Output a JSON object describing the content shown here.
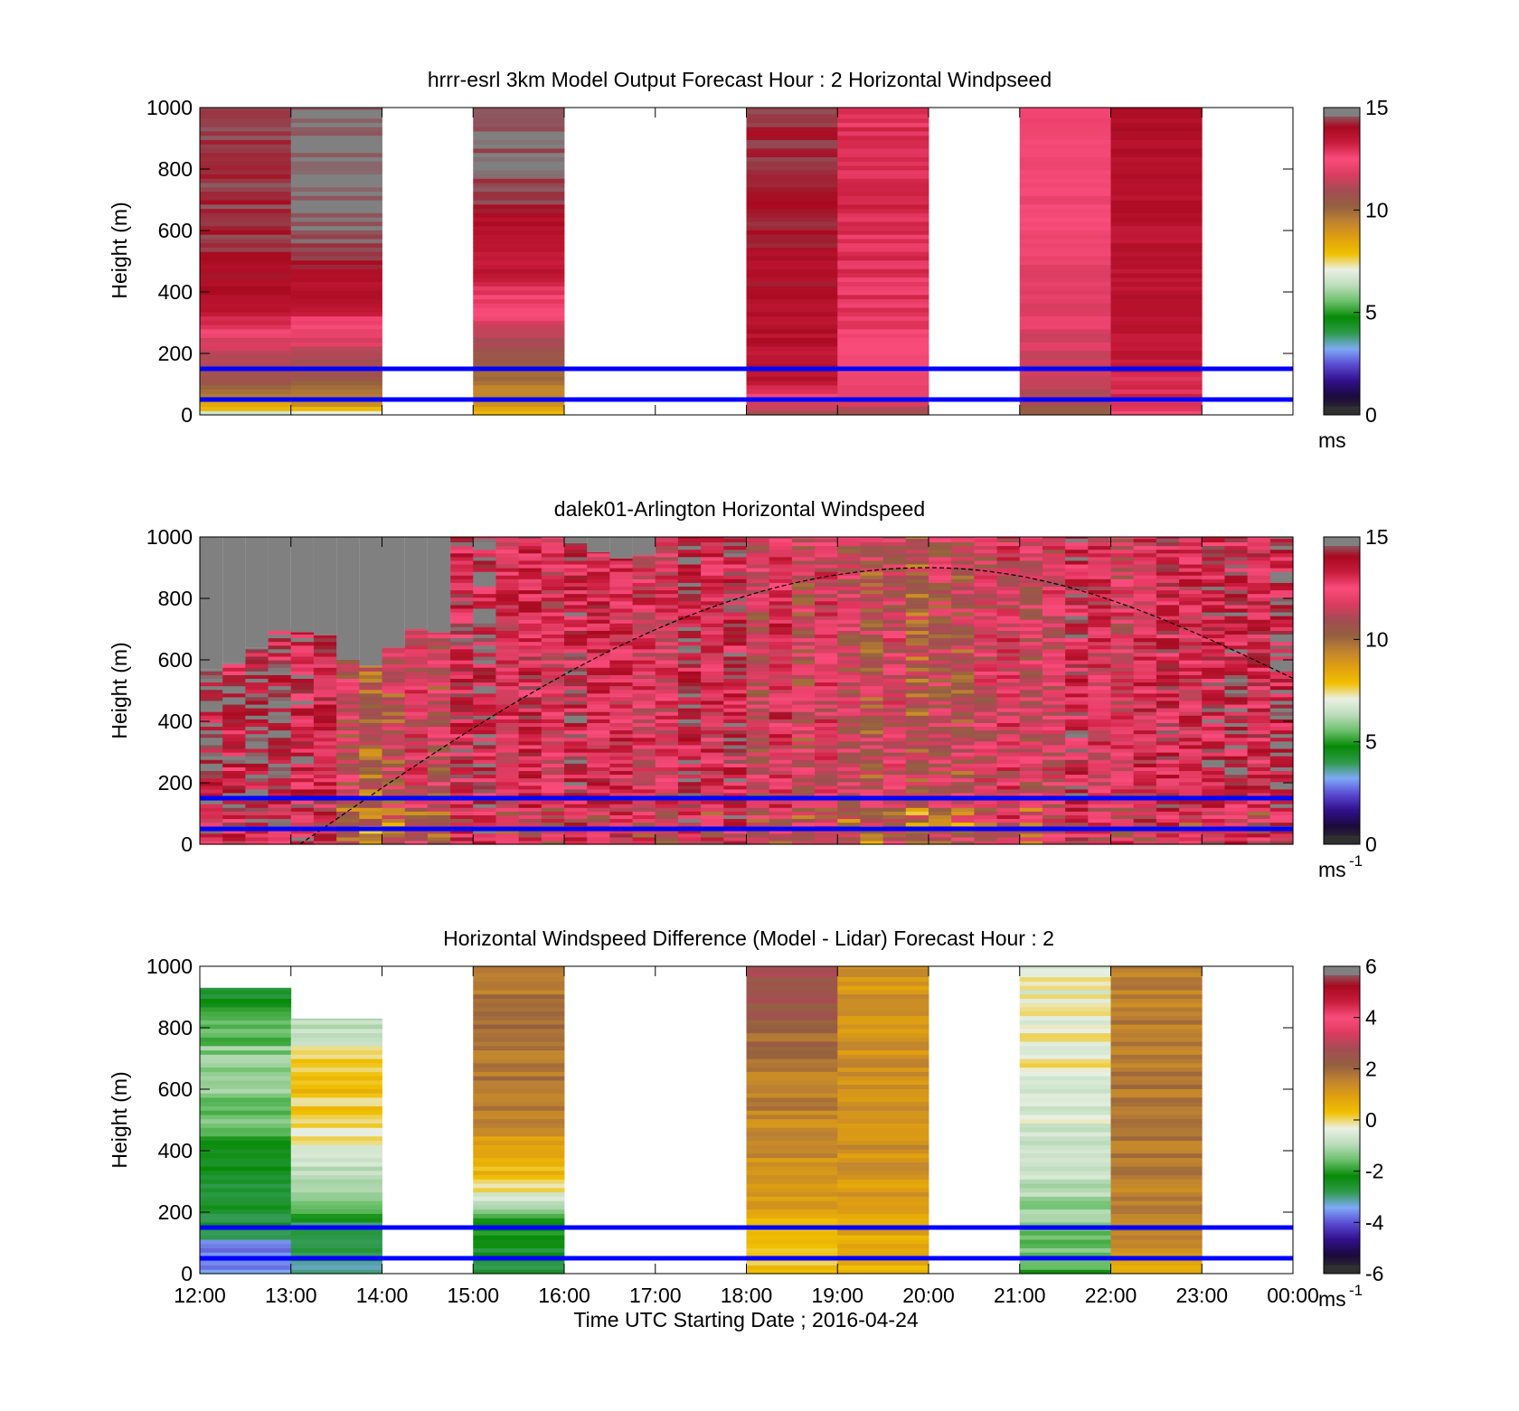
{
  "colors": {
    "speed_scale": [
      "#303030",
      "#1c0a3c",
      "#32108c",
      "#5a4ad2",
      "#7eaaf6",
      "#2e9a4a",
      "#068a06",
      "#6cc06c",
      "#bcdcbc",
      "#eaf0e4",
      "#f0c000",
      "#e0a010",
      "#c08430",
      "#946040",
      "#a44c54",
      "#dc3c60",
      "#fa4c7c",
      "#c81c3c",
      "#a80a20",
      "#808080"
    ],
    "diff_scale": [
      "#303030",
      "#1c0a3c",
      "#32108c",
      "#5a4ad2",
      "#7eaaf6",
      "#2e9a4a",
      "#068a06",
      "#6cc06c",
      "#bcdcbc",
      "#eaf0e4",
      "#f0c000",
      "#e0a010",
      "#c08430",
      "#946040",
      "#a44c54",
      "#dc3c60",
      "#fa4c7c",
      "#c81c3c",
      "#a80a20",
      "#808080"
    ],
    "reference_lines": "#0000ff",
    "curve": "#000000",
    "no_data_lidar": "#808080"
  },
  "x_axis": {
    "ticks": [
      "12:00",
      "13:00",
      "14:00",
      "15:00",
      "16:00",
      "17:00",
      "18:00",
      "19:00",
      "20:00",
      "21:00",
      "22:00",
      "23:00",
      "00:00"
    ],
    "label": "Time UTC  Starting Date ; 2016-04-24"
  },
  "chart_data": [
    {
      "type": "heatmap",
      "title": "hrrr-esrl 3km Model Output   Forecast Hour : 2 Horizontal Windpseed",
      "ylabel": "Height (m)",
      "ylim": [
        0,
        1000
      ],
      "yticks": [
        "0",
        "200",
        "400",
        "600",
        "800",
        "1000"
      ],
      "xlim_hours": [
        12,
        24
      ],
      "colorbar": {
        "min": 0,
        "max": 15,
        "ticks": [
          "0",
          "5",
          "10",
          "15"
        ],
        "unit_base": "ms",
        "unit_sup": ""
      },
      "reference_lines_m": [
        50,
        150
      ],
      "columns": [
        {
          "t0": 12,
          "profile": [
            [
              0,
              6.5
            ],
            [
              30,
              8.5
            ],
            [
              60,
              9.5
            ],
            [
              100,
              10.5
            ],
            [
              160,
              11
            ],
            [
              250,
              12.0
            ],
            [
              320,
              13.5
            ],
            [
              420,
              14.0
            ],
            [
              600,
              14.5
            ],
            [
              1000,
              14.5
            ]
          ]
        },
        {
          "t0": 13,
          "profile": [
            [
              0,
              6.0
            ],
            [
              30,
              9
            ],
            [
              70,
              9.8
            ],
            [
              120,
              10.5
            ],
            [
              250,
              12.0
            ],
            [
              350,
              13.5
            ],
            [
              450,
              14.2
            ],
            [
              650,
              15.0
            ],
            [
              1000,
              15.0
            ]
          ]
        },
        {
          "t0": 15,
          "profile": [
            [
              0,
              7.6
            ],
            [
              40,
              9.0
            ],
            [
              130,
              10.0
            ],
            [
              250,
              11.2
            ],
            [
              330,
              12.3
            ],
            [
              450,
              13.5
            ],
            [
              600,
              13.8
            ],
            [
              700,
              14.6
            ],
            [
              1000,
              15.0
            ]
          ]
        },
        {
          "t0": 18,
          "profile": [
            [
              0,
              10.5
            ],
            [
              40,
              12.0
            ],
            [
              100,
              13.6
            ],
            [
              350,
              14.0
            ],
            [
              600,
              14.2
            ],
            [
              1000,
              14.4
            ]
          ]
        },
        {
          "t0": 19,
          "profile": [
            [
              0,
              10.8
            ],
            [
              40,
              11.8
            ],
            [
              150,
              12.4
            ],
            [
              350,
              13.0
            ],
            [
              800,
              13.2
            ],
            [
              1000,
              13.0
            ]
          ]
        },
        {
          "t0": 21,
          "profile": [
            [
              0,
              10.0
            ],
            [
              40,
              11.0
            ],
            [
              160,
              11.6
            ],
            [
              300,
              12.0
            ],
            [
              500,
              12.2
            ],
            [
              700,
              12.4
            ],
            [
              900,
              12.6
            ],
            [
              1000,
              12.6
            ]
          ]
        },
        {
          "t0": 22,
          "profile": [
            [
              0,
              12.5
            ],
            [
              40,
              13.0
            ],
            [
              200,
              13.6
            ],
            [
              1000,
              14.0
            ]
          ]
        }
      ]
    },
    {
      "type": "heatmap",
      "title": "dalek01-Arlington  Horizontal Windspeed",
      "ylabel": "Height (m)",
      "ylim": [
        0,
        1000
      ],
      "yticks": [
        "0",
        "200",
        "400",
        "600",
        "800",
        "1000"
      ],
      "xlim_hours": [
        12,
        24
      ],
      "colorbar": {
        "min": 0,
        "max": 15,
        "ticks": [
          "0",
          "5",
          "10",
          "15"
        ],
        "unit_base": "ms",
        "unit_sup": "-1"
      },
      "reference_lines_m": [
        50,
        150
      ],
      "curve": {
        "start_hour": 13.1,
        "peak_hour": 20.0,
        "peak_height_m": 900,
        "end_hour": 24,
        "end_height_m": 540
      },
      "columns": [
        {
          "t0": 12.0,
          "top_m": 570,
          "mean": 14.3
        },
        {
          "t0": 12.25,
          "top_m": 590,
          "mean": 14.0
        },
        {
          "t0": 12.5,
          "top_m": 640,
          "mean": 14.4
        },
        {
          "t0": 12.75,
          "top_m": 700,
          "mean": 14.2
        },
        {
          "t0": 13.0,
          "top_m": 690,
          "mean": 13.8
        },
        {
          "t0": 13.25,
          "top_m": 680,
          "mean": 13.2
        },
        {
          "t0": 13.5,
          "top_m": 600,
          "mean": 11.5
        },
        {
          "t0": 13.75,
          "top_m": 580,
          "mean": 10.2
        },
        {
          "t0": 14.0,
          "top_m": 640,
          "mean": 11.0
        },
        {
          "t0": 14.25,
          "top_m": 700,
          "mean": 12.0
        },
        {
          "t0": 14.5,
          "top_m": 690,
          "mean": 11.2
        },
        {
          "t0": 14.75,
          "top_m": 1000,
          "mean": 13.5
        },
        {
          "t0": 15.0,
          "top_m": 1000,
          "mean": 14.0
        },
        {
          "t0": 15.25,
          "top_m": 1000,
          "mean": 12.6
        },
        {
          "t0": 15.5,
          "top_m": 1000,
          "mean": 13.2
        },
        {
          "t0": 15.75,
          "top_m": 1000,
          "mean": 12.2
        },
        {
          "t0": 16.0,
          "top_m": 980,
          "mean": 13.6
        },
        {
          "t0": 16.25,
          "top_m": 950,
          "mean": 13.0
        },
        {
          "t0": 16.5,
          "top_m": 930,
          "mean": 12.8
        },
        {
          "t0": 16.75,
          "top_m": 940,
          "mean": 12.4
        },
        {
          "t0": 17.0,
          "top_m": 1000,
          "mean": 12.2
        },
        {
          "t0": 17.25,
          "top_m": 1000,
          "mean": 14.2
        },
        {
          "t0": 17.5,
          "top_m": 1000,
          "mean": 12.6
        },
        {
          "t0": 17.75,
          "top_m": 1000,
          "mean": 13.6
        },
        {
          "t0": 18.0,
          "top_m": 1000,
          "mean": 11.6
        },
        {
          "t0": 18.25,
          "top_m": 1000,
          "mean": 12.8
        },
        {
          "t0": 18.5,
          "top_m": 1000,
          "mean": 11.4
        },
        {
          "t0": 18.75,
          "top_m": 1000,
          "mean": 12.2
        },
        {
          "t0": 19.0,
          "top_m": 1000,
          "mean": 11.6
        },
        {
          "t0": 19.25,
          "top_m": 1000,
          "mean": 11.0
        },
        {
          "t0": 19.5,
          "top_m": 1000,
          "mean": 11.8
        },
        {
          "t0": 19.75,
          "top_m": 1000,
          "mean": 10.6
        },
        {
          "t0": 20.0,
          "top_m": 1000,
          "mean": 11.4
        },
        {
          "t0": 20.25,
          "top_m": 1000,
          "mean": 11.0
        },
        {
          "t0": 20.5,
          "top_m": 1000,
          "mean": 11.8
        },
        {
          "t0": 20.75,
          "top_m": 1000,
          "mean": 12.2
        },
        {
          "t0": 21.0,
          "top_m": 1000,
          "mean": 11.6
        },
        {
          "t0": 21.25,
          "top_m": 1000,
          "mean": 12.0
        },
        {
          "t0": 21.5,
          "top_m": 1000,
          "mean": 13.6
        },
        {
          "t0": 21.75,
          "top_m": 1000,
          "mean": 12.6
        },
        {
          "t0": 22.0,
          "top_m": 1000,
          "mean": 12.0
        },
        {
          "t0": 22.25,
          "top_m": 1000,
          "mean": 12.8
        },
        {
          "t0": 22.5,
          "top_m": 1000,
          "mean": 13.4
        },
        {
          "t0": 22.75,
          "top_m": 1000,
          "mean": 12.6
        },
        {
          "t0": 23.0,
          "top_m": 1000,
          "mean": 13.6
        },
        {
          "t0": 23.25,
          "top_m": 1000,
          "mean": 13.8
        },
        {
          "t0": 23.5,
          "top_m": 1000,
          "mean": 13.0
        },
        {
          "t0": 23.75,
          "top_m": 1000,
          "mean": 14.2
        }
      ]
    },
    {
      "type": "heatmap",
      "title": "Horizontal Windspeed Difference (Model - Lidar) Forecast Hour : 2",
      "xlabel": "Time UTC  Starting Date ; 2016-04-24",
      "ylabel": "Height (m)",
      "ylim": [
        0,
        1000
      ],
      "yticks": [
        "0",
        "200",
        "400",
        "600",
        "800",
        "1000"
      ],
      "xlim_hours": [
        12,
        24
      ],
      "colorbar": {
        "min": -6,
        "max": 6,
        "ticks": [
          "-6",
          "-4",
          "-2",
          "0",
          "2",
          "4",
          "6"
        ],
        "unit_base": "ms",
        "unit_sup": "-1"
      },
      "reference_lines_m": [
        50,
        150
      ],
      "columns": [
        {
          "t0": 12,
          "top_m": 930,
          "profile": [
            [
              0,
              -3.5
            ],
            [
              60,
              -3.8
            ],
            [
              150,
              -2.8
            ],
            [
              300,
              -2.6
            ],
            [
              500,
              -1.6
            ],
            [
              700,
              -1.2
            ],
            [
              930,
              -2.6
            ]
          ]
        },
        {
          "t0": 13,
          "top_m": 830,
          "profile": [
            [
              0,
              -3.0
            ],
            [
              150,
              -2.8
            ],
            [
              250,
              -1.4
            ],
            [
              400,
              -0.4
            ],
            [
              600,
              0.4
            ],
            [
              700,
              0.2
            ],
            [
              720,
              -0.2
            ],
            [
              830,
              -1.0
            ]
          ]
        },
        {
          "t0": 15,
          "top_m": 1000,
          "profile": [
            [
              0,
              -2.6
            ],
            [
              150,
              -2.2
            ],
            [
              250,
              -0.6
            ],
            [
              300,
              0.3
            ],
            [
              450,
              1.2
            ],
            [
              600,
              1.8
            ],
            [
              800,
              2.0
            ],
            [
              1000,
              1.8
            ]
          ]
        },
        {
          "t0": 18,
          "top_m": 1000,
          "profile": [
            [
              0,
              0.3
            ],
            [
              100,
              0.2
            ],
            [
              200,
              0.8
            ],
            [
              400,
              1.4
            ],
            [
              700,
              1.8
            ],
            [
              900,
              2.6
            ],
            [
              1000,
              2.6
            ]
          ]
        },
        {
          "t0": 19,
          "top_m": 1000,
          "profile": [
            [
              0,
              0.5
            ],
            [
              100,
              0.6
            ],
            [
              160,
              1.0
            ],
            [
              500,
              1.4
            ],
            [
              1000,
              1.2
            ]
          ]
        },
        {
          "t0": 21,
          "top_m": 1000,
          "profile": [
            [
              0,
              -1.8
            ],
            [
              150,
              -1.4
            ],
            [
              300,
              -1.0
            ],
            [
              500,
              -0.6
            ],
            [
              700,
              -0.2
            ],
            [
              1000,
              -0.4
            ]
          ]
        },
        {
          "t0": 22,
          "top_m": 1000,
          "profile": [
            [
              0,
              0.6
            ],
            [
              100,
              1.6
            ],
            [
              500,
              1.8
            ],
            [
              1000,
              1.6
            ]
          ]
        }
      ]
    }
  ]
}
